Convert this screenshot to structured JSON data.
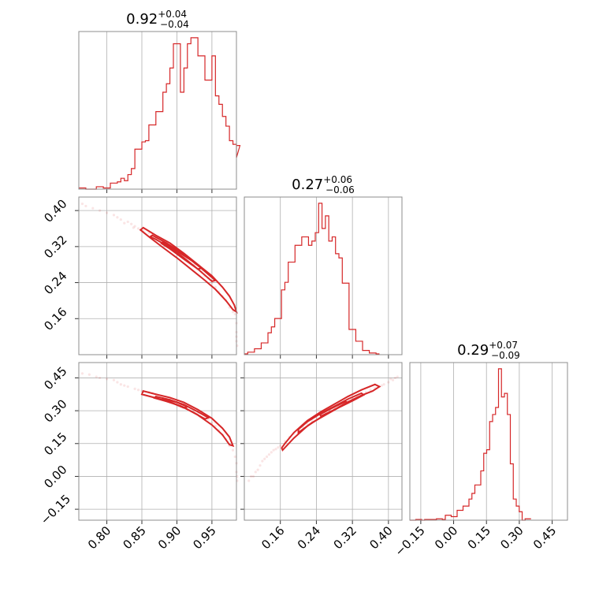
{
  "color": "#d62728",
  "chart_data": [
    {
      "panel": "0-0",
      "type": "histogram",
      "title": {
        "value": "0.92",
        "plus": "+0.04",
        "minus": "−0.04"
      },
      "x_range": [
        0.76,
        0.985
      ],
      "x_ticks": [
        0.8,
        0.85,
        0.9,
        0.95
      ],
      "bin_edges_start": 0.76,
      "bin_width": 0.005,
      "counts": [
        1,
        1,
        0,
        0,
        0,
        2,
        2,
        1,
        1,
        5,
        5,
        6,
        9,
        7,
        12,
        17,
        33,
        33,
        39,
        40,
        53,
        53,
        64,
        64,
        80,
        87,
        100,
        120,
        120,
        80,
        100,
        120,
        125,
        125,
        110,
        110,
        90,
        90,
        110,
        77,
        70,
        60,
        52,
        40,
        37,
        26,
        36
      ]
    },
    {
      "panel": "1-1",
      "type": "histogram",
      "title": {
        "value": "0.27",
        "plus": "+0.06",
        "minus": "−0.06"
      },
      "x_range": [
        0.08,
        0.43
      ],
      "x_ticks": [
        0.16,
        0.24,
        0.32,
        0.4
      ],
      "bin_edges_start": 0.08,
      "bin_width": 0.0075,
      "counts": [
        1,
        3,
        3,
        7,
        7,
        14,
        14,
        26,
        33,
        43,
        43,
        77,
        86,
        110,
        110,
        130,
        130,
        140,
        140,
        130,
        135,
        145,
        180,
        150,
        165,
        135,
        140,
        120,
        115,
        85,
        85,
        30,
        30,
        16,
        16,
        5,
        5,
        2,
        2,
        1
      ]
    },
    {
      "panel": "2-2",
      "type": "histogram",
      "title": {
        "value": "0.29",
        "plus": "+0.07",
        "minus": "−0.09"
      },
      "x_range": [
        -0.2,
        0.52
      ],
      "x_ticks": [
        -0.15,
        0.0,
        0.15,
        0.3,
        0.45
      ],
      "x_tick_labels": [
        "−0.15",
        "0.00",
        "0.15",
        "0.30",
        "0.45"
      ],
      "bin_edges_start": -0.2,
      "bin_width": 0.0135,
      "counts": [
        0,
        0,
        1,
        1,
        0,
        1,
        1,
        1,
        1,
        2,
        2,
        1,
        7,
        7,
        5,
        5,
        14,
        14,
        20,
        20,
        30,
        38,
        50,
        50,
        70,
        95,
        100,
        140,
        150,
        160,
        215,
        175,
        180,
        150,
        80,
        30,
        20,
        12,
        0,
        2,
        2
      ]
    },
    {
      "panel": "1-0",
      "type": "scatter-contour",
      "x_range": [
        0.76,
        0.985
      ],
      "y_range": [
        0.08,
        0.43
      ],
      "x_ticks": [
        0.8,
        0.85,
        0.9,
        0.95
      ],
      "y_ticks": [
        0.16,
        0.24,
        0.32,
        0.4
      ],
      "samples": [
        [
          0.765,
          0.415
        ],
        [
          0.77,
          0.41
        ],
        [
          0.78,
          0.405
        ],
        [
          0.79,
          0.4
        ],
        [
          0.8,
          0.395
        ],
        [
          0.81,
          0.39
        ],
        [
          0.815,
          0.385
        ],
        [
          0.82,
          0.38
        ],
        [
          0.83,
          0.375
        ],
        [
          0.835,
          0.37
        ],
        [
          0.84,
          0.365
        ],
        [
          0.845,
          0.36
        ],
        [
          0.86,
          0.35
        ],
        [
          0.87,
          0.34
        ],
        [
          0.88,
          0.33
        ],
        [
          0.89,
          0.32
        ],
        [
          0.9,
          0.31
        ],
        [
          0.91,
          0.3
        ],
        [
          0.92,
          0.29
        ],
        [
          0.93,
          0.27
        ],
        [
          0.94,
          0.255
        ],
        [
          0.95,
          0.24
        ],
        [
          0.96,
          0.22
        ],
        [
          0.97,
          0.2
        ],
        [
          0.975,
          0.185
        ],
        [
          0.98,
          0.175
        ],
        [
          0.983,
          0.17
        ],
        [
          0.985,
          0.15
        ],
        [
          0.985,
          0.13
        ],
        [
          0.985,
          0.12
        ],
        [
          0.985,
          0.11
        ],
        [
          0.986,
          0.1
        ],
        [
          0.825,
          0.372
        ],
        [
          0.838,
          0.362
        ],
        [
          0.852,
          0.355
        ],
        [
          0.865,
          0.345
        ],
        [
          0.878,
          0.335
        ],
        [
          0.895,
          0.318
        ],
        [
          0.905,
          0.305
        ],
        [
          0.915,
          0.295
        ],
        [
          0.925,
          0.28
        ],
        [
          0.935,
          0.265
        ],
        [
          0.945,
          0.25
        ],
        [
          0.955,
          0.23
        ],
        [
          0.965,
          0.21
        ]
      ],
      "contours": [
        [
          [
            0.852,
            0.362
          ],
          [
            0.87,
            0.345
          ],
          [
            0.89,
            0.328
          ],
          [
            0.91,
            0.305
          ],
          [
            0.93,
            0.28
          ],
          [
            0.95,
            0.255
          ],
          [
            0.965,
            0.23
          ],
          [
            0.975,
            0.21
          ],
          [
            0.982,
            0.19
          ],
          [
            0.985,
            0.175
          ],
          [
            0.98,
            0.18
          ],
          [
            0.97,
            0.2
          ],
          [
            0.955,
            0.225
          ],
          [
            0.94,
            0.245
          ],
          [
            0.92,
            0.27
          ],
          [
            0.9,
            0.295
          ],
          [
            0.88,
            0.318
          ],
          [
            0.86,
            0.342
          ],
          [
            0.848,
            0.357
          ],
          [
            0.852,
            0.362
          ]
        ],
        [
          [
            0.865,
            0.345
          ],
          [
            0.885,
            0.328
          ],
          [
            0.905,
            0.308
          ],
          [
            0.925,
            0.285
          ],
          [
            0.945,
            0.258
          ],
          [
            0.955,
            0.245
          ],
          [
            0.95,
            0.243
          ],
          [
            0.93,
            0.27
          ],
          [
            0.91,
            0.295
          ],
          [
            0.89,
            0.318
          ],
          [
            0.87,
            0.336
          ],
          [
            0.862,
            0.342
          ],
          [
            0.865,
            0.345
          ]
        ],
        [
          [
            0.88,
            0.33
          ],
          [
            0.9,
            0.31
          ],
          [
            0.92,
            0.29
          ],
          [
            0.935,
            0.272
          ],
          [
            0.93,
            0.27
          ],
          [
            0.91,
            0.292
          ],
          [
            0.89,
            0.315
          ],
          [
            0.878,
            0.327
          ],
          [
            0.88,
            0.33
          ]
        ]
      ]
    },
    {
      "panel": "2-0",
      "type": "scatter-contour",
      "x_range": [
        0.76,
        0.985
      ],
      "y_range": [
        -0.2,
        0.52
      ],
      "x_ticks": [
        0.8,
        0.85,
        0.9,
        0.95
      ],
      "x_tick_labels": [
        "0.80",
        "0.85",
        "0.90",
        "0.95"
      ],
      "y_ticks": [
        -0.15,
        0.0,
        0.15,
        0.3,
        0.45
      ],
      "y_tick_labels": [
        "−0.15",
        "0.00",
        "0.15",
        "0.30",
        "0.45"
      ],
      "samples": [
        [
          0.765,
          0.47
        ],
        [
          0.775,
          0.465
        ],
        [
          0.785,
          0.455
        ],
        [
          0.79,
          0.45
        ],
        [
          0.8,
          0.445
        ],
        [
          0.81,
          0.44
        ],
        [
          0.815,
          0.43
        ],
        [
          0.82,
          0.42
        ],
        [
          0.83,
          0.41
        ],
        [
          0.84,
          0.4
        ],
        [
          0.85,
          0.39
        ],
        [
          0.86,
          0.385
        ],
        [
          0.87,
          0.375
        ],
        [
          0.88,
          0.365
        ],
        [
          0.89,
          0.355
        ],
        [
          0.9,
          0.34
        ],
        [
          0.91,
          0.325
        ],
        [
          0.92,
          0.31
        ],
        [
          0.93,
          0.29
        ],
        [
          0.94,
          0.27
        ],
        [
          0.95,
          0.245
        ],
        [
          0.96,
          0.21
        ],
        [
          0.97,
          0.17
        ],
        [
          0.975,
          0.14
        ],
        [
          0.98,
          0.12
        ],
        [
          0.983,
          0.09
        ],
        [
          0.985,
          0.06
        ],
        [
          0.985,
          0.02
        ],
        [
          0.986,
          0.0
        ],
        [
          0.986,
          -0.02
        ],
        [
          0.825,
          0.415
        ],
        [
          0.845,
          0.395
        ],
        [
          0.865,
          0.38
        ],
        [
          0.885,
          0.36
        ],
        [
          0.905,
          0.33
        ],
        [
          0.925,
          0.3
        ],
        [
          0.945,
          0.26
        ],
        [
          0.955,
          0.23
        ],
        [
          0.965,
          0.19
        ]
      ],
      "contours": [
        [
          [
            0.852,
            0.39
          ],
          [
            0.87,
            0.375
          ],
          [
            0.89,
            0.36
          ],
          [
            0.91,
            0.338
          ],
          [
            0.93,
            0.305
          ],
          [
            0.95,
            0.265
          ],
          [
            0.965,
            0.22
          ],
          [
            0.975,
            0.18
          ],
          [
            0.98,
            0.14
          ],
          [
            0.975,
            0.145
          ],
          [
            0.965,
            0.19
          ],
          [
            0.95,
            0.235
          ],
          [
            0.93,
            0.28
          ],
          [
            0.91,
            0.315
          ],
          [
            0.89,
            0.34
          ],
          [
            0.87,
            0.358
          ],
          [
            0.85,
            0.375
          ],
          [
            0.852,
            0.39
          ]
        ],
        [
          [
            0.87,
            0.365
          ],
          [
            0.89,
            0.35
          ],
          [
            0.91,
            0.328
          ],
          [
            0.93,
            0.295
          ],
          [
            0.945,
            0.268
          ],
          [
            0.94,
            0.262
          ],
          [
            0.925,
            0.29
          ],
          [
            0.905,
            0.322
          ],
          [
            0.885,
            0.343
          ],
          [
            0.868,
            0.358
          ],
          [
            0.87,
            0.365
          ]
        ],
        [
          [
            0.88,
            0.355
          ],
          [
            0.9,
            0.338
          ],
          [
            0.915,
            0.318
          ],
          [
            0.91,
            0.313
          ],
          [
            0.895,
            0.333
          ],
          [
            0.878,
            0.35
          ],
          [
            0.88,
            0.355
          ]
        ]
      ]
    },
    {
      "panel": "2-1",
      "type": "scatter-contour",
      "x_range": [
        0.08,
        0.43
      ],
      "y_range": [
        -0.2,
        0.52
      ],
      "x_ticks": [
        0.16,
        0.24,
        0.32,
        0.4
      ],
      "x_tick_labels": [
        "0.16",
        "0.24",
        "0.32",
        "0.40"
      ],
      "y_ticks": [
        -0.15,
        0.0,
        0.15,
        0.3,
        0.45
      ],
      "samples": [
        [
          0.09,
          -0.02
        ],
        [
          0.1,
          0.0
        ],
        [
          0.11,
          0.03
        ],
        [
          0.115,
          0.05
        ],
        [
          0.12,
          0.07
        ],
        [
          0.13,
          0.09
        ],
        [
          0.14,
          0.11
        ],
        [
          0.15,
          0.125
        ],
        [
          0.16,
          0.14
        ],
        [
          0.17,
          0.16
        ],
        [
          0.18,
          0.18
        ],
        [
          0.19,
          0.195
        ],
        [
          0.2,
          0.21
        ],
        [
          0.21,
          0.225
        ],
        [
          0.22,
          0.24
        ],
        [
          0.23,
          0.255
        ],
        [
          0.24,
          0.27
        ],
        [
          0.25,
          0.28
        ],
        [
          0.26,
          0.29
        ],
        [
          0.27,
          0.3
        ],
        [
          0.28,
          0.31
        ],
        [
          0.29,
          0.32
        ],
        [
          0.3,
          0.33
        ],
        [
          0.31,
          0.345
        ],
        [
          0.32,
          0.355
        ],
        [
          0.33,
          0.365
        ],
        [
          0.34,
          0.375
        ],
        [
          0.35,
          0.385
        ],
        [
          0.36,
          0.395
        ],
        [
          0.37,
          0.405
        ],
        [
          0.38,
          0.41
        ],
        [
          0.39,
          0.42
        ],
        [
          0.4,
          0.43
        ],
        [
          0.41,
          0.44
        ],
        [
          0.42,
          0.455
        ],
        [
          0.125,
          0.08
        ],
        [
          0.135,
          0.1
        ],
        [
          0.145,
          0.12
        ],
        [
          0.105,
          0.02
        ],
        [
          0.095,
          0.0
        ],
        [
          0.155,
          0.132
        ],
        [
          0.385,
          0.415
        ],
        [
          0.405,
          0.445
        ],
        [
          0.415,
          0.45
        ]
      ],
      "contours": [
        [
          [
            0.165,
            0.12
          ],
          [
            0.19,
            0.175
          ],
          [
            0.22,
            0.23
          ],
          [
            0.25,
            0.27
          ],
          [
            0.28,
            0.305
          ],
          [
            0.31,
            0.34
          ],
          [
            0.34,
            0.37
          ],
          [
            0.365,
            0.39
          ],
          [
            0.38,
            0.41
          ],
          [
            0.37,
            0.42
          ],
          [
            0.34,
            0.395
          ],
          [
            0.31,
            0.365
          ],
          [
            0.28,
            0.33
          ],
          [
            0.25,
            0.295
          ],
          [
            0.22,
            0.255
          ],
          [
            0.19,
            0.2
          ],
          [
            0.17,
            0.15
          ],
          [
            0.163,
            0.13
          ],
          [
            0.165,
            0.12
          ]
        ],
        [
          [
            0.2,
            0.2
          ],
          [
            0.23,
            0.245
          ],
          [
            0.26,
            0.28
          ],
          [
            0.29,
            0.315
          ],
          [
            0.32,
            0.345
          ],
          [
            0.345,
            0.372
          ],
          [
            0.34,
            0.38
          ],
          [
            0.31,
            0.353
          ],
          [
            0.28,
            0.32
          ],
          [
            0.25,
            0.288
          ],
          [
            0.22,
            0.25
          ],
          [
            0.2,
            0.215
          ],
          [
            0.2,
            0.2
          ]
        ],
        [
          [
            0.25,
            0.275
          ],
          [
            0.28,
            0.305
          ],
          [
            0.31,
            0.335
          ],
          [
            0.305,
            0.342
          ],
          [
            0.275,
            0.312
          ],
          [
            0.248,
            0.283
          ],
          [
            0.25,
            0.275
          ]
        ]
      ]
    }
  ]
}
